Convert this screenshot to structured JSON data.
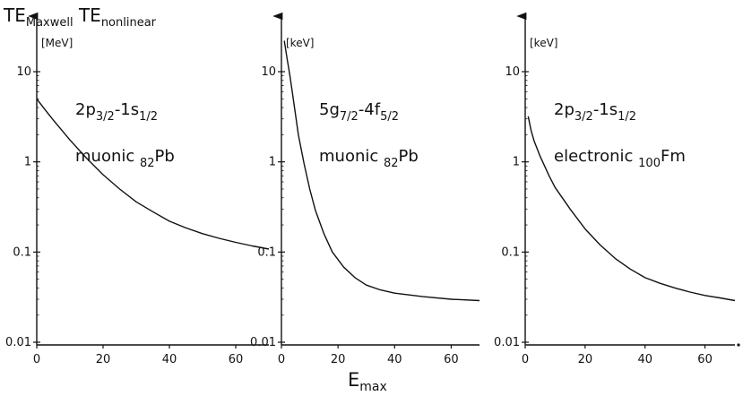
{
  "title": {
    "main": "TE",
    "sub1": "Maxwell",
    "mid": " TE",
    "sub2": "nonlinear"
  },
  "xlabel": {
    "main": "E",
    "sub": "max"
  },
  "colors": {
    "ink": "#111111",
    "background": "#ffffff"
  },
  "chart_data": [
    {
      "type": "line",
      "unit": "[MeV]",
      "label": {
        "line1": [
          {
            "t": "2p"
          },
          {
            "t": "3/2",
            "sub": true
          },
          {
            "t": "-1s"
          },
          {
            "t": "1/2",
            "sub": true
          }
        ],
        "line2": [
          {
            "t": "muonic "
          },
          {
            "t": "82",
            "sub": true
          },
          {
            "t": "Pb"
          }
        ]
      },
      "ylog": true,
      "ylim": [
        0.01,
        25
      ],
      "xlim": [
        0,
        70
      ],
      "yticks": [
        0.01,
        0.1,
        1,
        10
      ],
      "ytick_labels": [
        "0.01",
        "0.1",
        "1",
        "10"
      ],
      "xticks": [
        0,
        20,
        40,
        60
      ],
      "xtick_labels": [
        "0",
        "20",
        "40",
        "60"
      ],
      "x": [
        0,
        2,
        5,
        10,
        15,
        20,
        25,
        30,
        35,
        40,
        45,
        50,
        55,
        60,
        65,
        70
      ],
      "y": [
        5.0,
        4.0,
        2.9,
        1.75,
        1.1,
        0.72,
        0.5,
        0.36,
        0.28,
        0.22,
        0.185,
        0.16,
        0.142,
        0.128,
        0.117,
        0.108
      ]
    },
    {
      "type": "line",
      "unit": "[keV]",
      "label": {
        "line1": [
          {
            "t": "5g"
          },
          {
            "t": "7/2",
            "sub": true
          },
          {
            "t": "-4f"
          },
          {
            "t": "5/2",
            "sub": true
          }
        ],
        "line2": [
          {
            "t": "muonic "
          },
          {
            "t": "82",
            "sub": true
          },
          {
            "t": "Pb"
          }
        ]
      },
      "ylog": true,
      "ylim": [
        0.01,
        25
      ],
      "xlim": [
        0,
        70
      ],
      "yticks": [
        0.01,
        0.1,
        1,
        10
      ],
      "ytick_labels": [
        "0.01",
        "0.1",
        "1",
        "10"
      ],
      "xticks": [
        0,
        20,
        40,
        60
      ],
      "xtick_labels": [
        "0",
        "20",
        "40",
        "60"
      ],
      "x": [
        1,
        2,
        3,
        4,
        5,
        6,
        8,
        10,
        12,
        15,
        18,
        22,
        26,
        30,
        35,
        40,
        50,
        60,
        70
      ],
      "y": [
        22,
        14,
        9,
        5.5,
        3.3,
        2.0,
        0.95,
        0.5,
        0.29,
        0.16,
        0.1,
        0.068,
        0.052,
        0.043,
        0.038,
        0.035,
        0.032,
        0.03,
        0.029
      ]
    },
    {
      "type": "line",
      "unit": "[keV]",
      "label": {
        "line1": [
          {
            "t": "2p"
          },
          {
            "t": "3/2",
            "sub": true
          },
          {
            "t": "-1s"
          },
          {
            "t": "1/2",
            "sub": true
          }
        ],
        "line2": [
          {
            "t": "electronic "
          },
          {
            "t": "100",
            "sub": true
          },
          {
            "t": "Fm"
          }
        ]
      },
      "ylog": true,
      "ylim": [
        0.01,
        25
      ],
      "xlim": [
        0,
        70
      ],
      "yticks": [
        0.01,
        0.1,
        1,
        10
      ],
      "ytick_labels": [
        "0.01",
        "0.1",
        "1",
        "10"
      ],
      "xticks": [
        0,
        20,
        40,
        60
      ],
      "xtick_labels": [
        "0",
        "20",
        "40",
        "60"
      ],
      "x": [
        1,
        2,
        3,
        5,
        8,
        10,
        15,
        20,
        25,
        30,
        35,
        40,
        45,
        50,
        55,
        60,
        65,
        70
      ],
      "y": [
        3.2,
        2.2,
        1.7,
        1.15,
        0.7,
        0.52,
        0.3,
        0.18,
        0.12,
        0.085,
        0.065,
        0.052,
        0.045,
        0.04,
        0.036,
        0.033,
        0.031,
        0.029
      ]
    }
  ]
}
